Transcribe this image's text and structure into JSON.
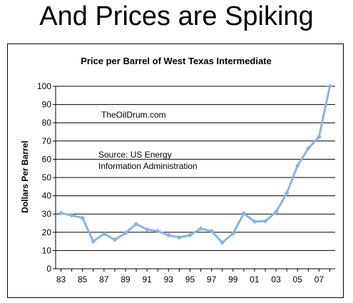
{
  "slide": {
    "title": "And Prices are Spiking"
  },
  "chart_data": {
    "type": "line",
    "title": "Price per Barrel of West Texas Intermediate",
    "xlabel": "",
    "ylabel": "Dollars Per Barrel",
    "ylim": [
      0,
      100
    ],
    "yticks": [
      "0",
      "10",
      "20",
      "30",
      "40",
      "50",
      "60",
      "70",
      "80",
      "90",
      "100"
    ],
    "xticks": [
      "83",
      "85",
      "87",
      "89",
      "91",
      "93",
      "95",
      "97",
      "99",
      "01",
      "03",
      "05",
      "07"
    ],
    "grid": "horizontal",
    "annotations": [
      "TheOilDrum.com",
      "Source: US Energy",
      "Information Administration"
    ],
    "series": [
      {
        "color": "#8db3e2",
        "points": [
          {
            "x": 1983,
            "y": 30.5
          },
          {
            "x": 1984,
            "y": 29.3
          },
          {
            "x": 1985,
            "y": 27.9
          },
          {
            "x": 1986,
            "y": 15.0
          },
          {
            "x": 1987,
            "y": 19.2
          },
          {
            "x": 1988,
            "y": 15.9
          },
          {
            "x": 1989,
            "y": 19.6
          },
          {
            "x": 1990,
            "y": 24.5
          },
          {
            "x": 1991,
            "y": 21.5
          },
          {
            "x": 1992,
            "y": 20.6
          },
          {
            "x": 1993,
            "y": 18.4
          },
          {
            "x": 1994,
            "y": 17.2
          },
          {
            "x": 1995,
            "y": 18.4
          },
          {
            "x": 1996,
            "y": 22.0
          },
          {
            "x": 1997,
            "y": 20.6
          },
          {
            "x": 1998,
            "y": 14.4
          },
          {
            "x": 1999,
            "y": 19.3
          },
          {
            "x": 2000,
            "y": 30.3
          },
          {
            "x": 2001,
            "y": 25.9
          },
          {
            "x": 2002,
            "y": 26.1
          },
          {
            "x": 2003,
            "y": 31.1
          },
          {
            "x": 2004,
            "y": 41.4
          },
          {
            "x": 2005,
            "y": 56.5
          },
          {
            "x": 2006,
            "y": 66.0
          },
          {
            "x": 2007,
            "y": 72.3
          },
          {
            "x": 2008,
            "y": 100.0
          }
        ]
      }
    ]
  }
}
